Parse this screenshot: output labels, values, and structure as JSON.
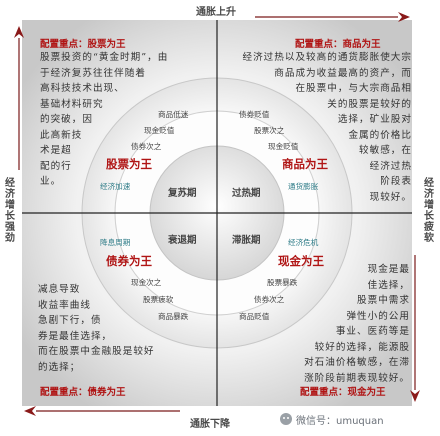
{
  "axes": {
    "top": "通胀上升",
    "bottom": "通胀下降",
    "left": "经济增长强劲",
    "right": "经济增长疲软"
  },
  "quadrants": {
    "top_left": {
      "config": "配置重点：股票为王",
      "para": [
        "股票投资的“黄金时期”，由",
        "于经济复苏往往伴随着",
        "高科技技术出现、",
        "基础材料研究",
        "的突破，因",
        "此高新技",
        "术是超",
        "配的行",
        "业。"
      ],
      "title": "股票为王",
      "sub": "经济加速",
      "ring": [
        "商品低迷",
        "现金贬值",
        "债券次之"
      ],
      "phase": "复苏期"
    },
    "top_right": {
      "config": "配置重点：商品为王",
      "para": [
        "经济过热以及较高的通货膨胀使大宗",
        "商品成为收益最高的资产，而",
        "在股票中，与大宗商品相",
        "关的股票是较好的",
        "选择，矿业股对",
        "金属的价格比",
        "较敏感，在",
        "经济过热",
        "阶段表",
        "现较好。"
      ],
      "title": "商品为王",
      "sub": "通货膨胀",
      "ring": [
        "债券贬值",
        "股票次之",
        "现金贬值"
      ],
      "phase": "过热期"
    },
    "bottom_left": {
      "config": "配置重点：债券为王",
      "para": [
        "减息导致",
        "收益率曲线",
        "急剧下行，债",
        "券是最佳选择，",
        "而在股票中金融股是较好",
        "的选择；"
      ],
      "title": "债券为王",
      "sub": "降息周期",
      "ring": [
        "现金次之",
        "股票疲软",
        "商品暴跌"
      ],
      "phase": "衰退期"
    },
    "bottom_right": {
      "config": "配置重点：现金为王",
      "para": [
        "现金是最",
        "佳选择，",
        "股票中需求",
        "弹性小的公用",
        "事业、医药等是",
        "较好的选择，能源股",
        "对石油价格敏感，在滞",
        "涨阶段前期表现较好。"
      ],
      "title": "现金为王",
      "sub": "经济危机",
      "ring": [
        "股票暴跌",
        "债券次之",
        "商品贬值"
      ],
      "phase": "滞胀期"
    }
  },
  "watermark": "微信号：umuquan"
}
